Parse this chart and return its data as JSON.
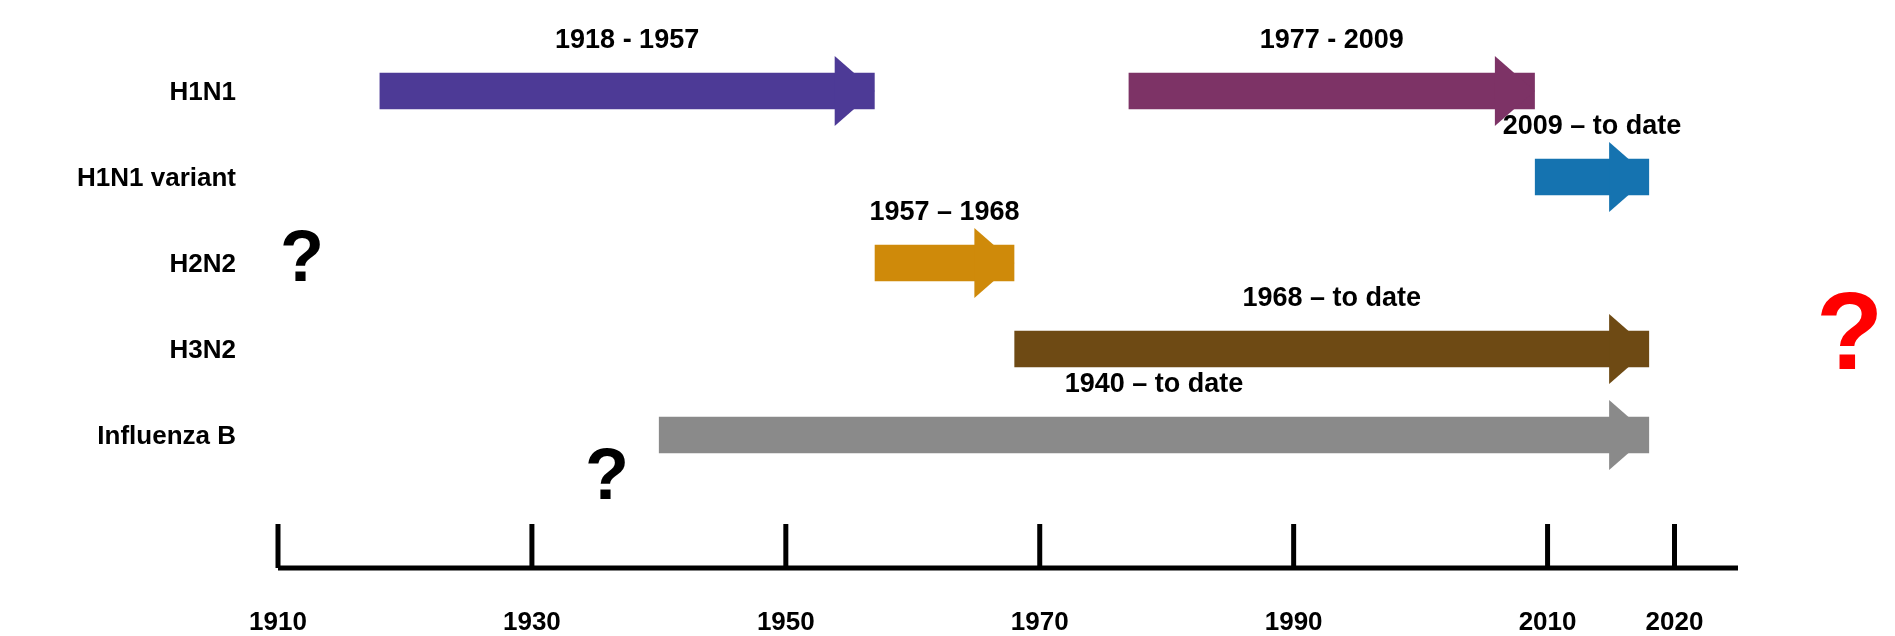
{
  "chart_data": {
    "type": "bar",
    "orientation": "horizontal",
    "categories": [
      "H1N1",
      "H1N1 variant",
      "H2N2",
      "H3N2",
      "Influenza B"
    ],
    "series": [
      {
        "base": [
          1918,
          2009,
          1957,
          1968,
          1940
        ],
        "values": [
          39,
          9,
          11,
          50,
          78
        ],
        "colors": [
          "#4d3a96",
          "#1573b0",
          "#cf8a0a",
          "#6e4a14",
          "#8a8a8a"
        ]
      },
      {
        "base": [
          1977,
          null,
          null,
          null,
          null
        ],
        "values": [
          32,
          null,
          null,
          null,
          null
        ],
        "colors": [
          "#7d3366",
          null,
          null,
          null,
          null
        ]
      }
    ],
    "xlim": [
      1910,
      2025
    ],
    "xticks": [
      1910,
      1930,
      1950,
      1970,
      1990,
      2010,
      2020
    ],
    "grid": false,
    "legend": false,
    "annotations": [
      "1918 - 1957",
      "1977 - 2009",
      "2009 – to date",
      "1957 – 1968",
      "1968 – to date",
      "1940 – to date",
      "?",
      "?",
      "?"
    ]
  }
}
